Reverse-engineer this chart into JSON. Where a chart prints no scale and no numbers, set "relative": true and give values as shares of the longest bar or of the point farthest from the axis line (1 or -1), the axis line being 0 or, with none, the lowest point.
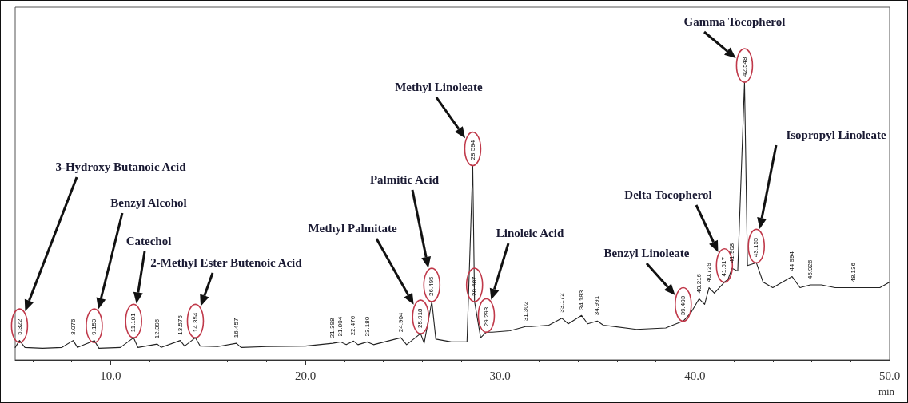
{
  "chart_data": {
    "type": "line",
    "relative": true,
    "xlabel": "min",
    "xlim": [
      5.1,
      50
    ],
    "xticks": [
      {
        "value": 10,
        "label": "10.0"
      },
      {
        "value": 20,
        "label": "20.0"
      },
      {
        "value": 30,
        "label": "30.0"
      },
      {
        "value": 40,
        "label": "40.0"
      },
      {
        "value": 50,
        "label": "50.0"
      }
    ],
    "grid": false,
    "marker": "none",
    "line_style": "solid",
    "series": [
      {
        "color": "#222222",
        "x": [
          5.1,
          5.322,
          5.6,
          6.5,
          7.5,
          8.076,
          8.3,
          9.159,
          9.4,
          10.5,
          11.181,
          11.4,
          12.396,
          12.6,
          13.576,
          13.8,
          14.354,
          14.6,
          15.5,
          16.457,
          16.7,
          18.0,
          20.0,
          21.398,
          21.804,
          22.1,
          22.476,
          22.7,
          23.18,
          23.5,
          24.904,
          25.2,
          25.918,
          26.1,
          26.495,
          26.7,
          27.5,
          28.3,
          28.594,
          28.687,
          29.0,
          29.293,
          29.6,
          30.5,
          31.302,
          31.6,
          32.5,
          33.172,
          33.5,
          34.183,
          34.5,
          34.991,
          35.3,
          37.0,
          38.5,
          39.403,
          39.8,
          40.216,
          40.5,
          40.729,
          41.0,
          41.517,
          41.7,
          41.908,
          42.2,
          42.548,
          42.7,
          43.155,
          43.5,
          44.0,
          44.994,
          45.4,
          45.926,
          46.5,
          47.2,
          48.136,
          49.5,
          50.0
        ],
        "values": [
          0.045,
          0.07,
          0.045,
          0.042,
          0.045,
          0.07,
          0.045,
          0.07,
          0.042,
          0.045,
          0.08,
          0.045,
          0.057,
          0.045,
          0.07,
          0.05,
          0.08,
          0.05,
          0.048,
          0.06,
          0.045,
          0.048,
          0.05,
          0.06,
          0.065,
          0.055,
          0.068,
          0.055,
          0.065,
          0.055,
          0.08,
          0.055,
          0.095,
          0.06,
          0.21,
          0.075,
          0.065,
          0.065,
          0.7,
          0.21,
          0.08,
          0.1,
          0.1,
          0.105,
          0.12,
          0.12,
          0.125,
          0.15,
          0.13,
          0.16,
          0.13,
          0.14,
          0.125,
          0.11,
          0.115,
          0.14,
          0.17,
          0.22,
          0.2,
          0.26,
          0.24,
          0.28,
          0.29,
          0.33,
          0.32,
          1.0,
          0.34,
          0.35,
          0.28,
          0.26,
          0.3,
          0.26,
          0.27,
          0.27,
          0.26,
          0.26,
          0.26,
          0.28
        ]
      }
    ],
    "annotations": [
      "3-Hydroxy Butanoic Acid",
      "Benzyl Alcohol",
      "Catechol",
      "2-Methyl Ester Butenoic Acid",
      "Methyl Palmitate",
      "Palmitic Acid",
      "Methyl Linoleate",
      "Linoleic Acid",
      "Benzyl Linoleate",
      "Delta Tocopherol",
      "Gamma Tocopherol",
      "Isopropyl Linoleate",
      {
        "text": "5.322",
        "x": 5.322,
        "y": 0.07
      },
      {
        "text": "8.076",
        "x": 8.076,
        "y": 0.07
      },
      {
        "text": "9.159",
        "x": 9.159,
        "y": 0.07
      },
      {
        "text": "11.181",
        "x": 11.181,
        "y": 0.08
      },
      {
        "text": "12.396",
        "x": 12.396,
        "y": 0.057
      },
      {
        "text": "13.576",
        "x": 13.576,
        "y": 0.07
      },
      {
        "text": "14.354",
        "x": 14.354,
        "y": 0.08
      },
      {
        "text": "16.457",
        "x": 16.457,
        "y": 0.06
      },
      {
        "text": "21.398",
        "x": 21.398,
        "y": 0.06
      },
      {
        "text": "21.804",
        "x": 21.804,
        "y": 0.065
      },
      {
        "text": "22.476",
        "x": 22.476,
        "y": 0.068
      },
      {
        "text": "23.180",
        "x": 23.18,
        "y": 0.065
      },
      {
        "text": "24.904",
        "x": 24.904,
        "y": 0.08
      },
      {
        "text": "25.918",
        "x": 25.918,
        "y": 0.095
      },
      {
        "text": "26.495",
        "x": 26.495,
        "y": 0.21
      },
      {
        "text": "28.594",
        "x": 28.594,
        "y": 0.7
      },
      {
        "text": "28.687",
        "x": 28.687,
        "y": 0.21
      },
      {
        "text": "29.293",
        "x": 29.293,
        "y": 0.1
      },
      {
        "text": "31.302",
        "x": 31.302,
        "y": 0.12
      },
      {
        "text": "33.172",
        "x": 33.172,
        "y": 0.15
      },
      {
        "text": "34.183",
        "x": 34.183,
        "y": 0.16
      },
      {
        "text": "34.991",
        "x": 34.991,
        "y": 0.14
      },
      {
        "text": "39.403",
        "x": 39.403,
        "y": 0.14
      },
      {
        "text": "40.216",
        "x": 40.216,
        "y": 0.22
      },
      {
        "text": "40.729",
        "x": 40.729,
        "y": 0.26
      },
      {
        "text": "41.517",
        "x": 41.517,
        "y": 0.28
      },
      {
        "text": "41.908",
        "x": 41.908,
        "y": 0.33
      },
      {
        "text": "42.548",
        "x": 42.548,
        "y": 1.0
      },
      {
        "text": "43.155",
        "x": 43.155,
        "y": 0.35
      },
      {
        "text": "44.994",
        "x": 44.994,
        "y": 0.3
      },
      {
        "text": "45.926",
        "x": 45.926,
        "y": 0.27
      },
      {
        "text": "48.136",
        "x": 48.136,
        "y": 0.26
      }
    ]
  }
}
